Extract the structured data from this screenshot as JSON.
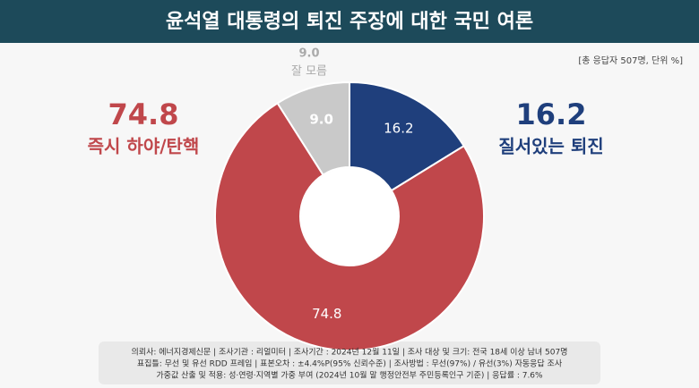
{
  "chart_data": {
    "type": "pie",
    "title": "윤석열 대통령의 퇴진 주장에 대한 국민 여론",
    "note": "[총 응답자 507명, 단위 %]",
    "categories": [
      "질서있는 퇴진",
      "즉시 하야/탄핵",
      "잘 모름"
    ],
    "values": [
      16.2,
      74.8,
      9.0
    ],
    "value_labels": [
      "16.2",
      "74.8",
      "9.0"
    ],
    "colors": [
      "#1f3f7c",
      "#c0474b",
      "#c9c9c9"
    ],
    "footer": [
      "의뢰사: 에너지경제신문 | 조사기관 : 리얼미터 | 조사기간 : 2024년 12월 11일 | 조사 대상 및 크기: 전국 18세 이상 남녀 507명",
      "표집틀: 무선 및 유선 RDD 프레임 | 표본오차 : ±4.4%P(95% 신뢰수준) | 조사방법 : 무선(97%) / 유선(3%) 자동응답 조사",
      "가중값 산출 및 적용: 성·연령·지역별 가중 부여 (2024년 10월 말 행정안전부 주민등록인구 기준) | 응답률 : 7.6%"
    ]
  }
}
